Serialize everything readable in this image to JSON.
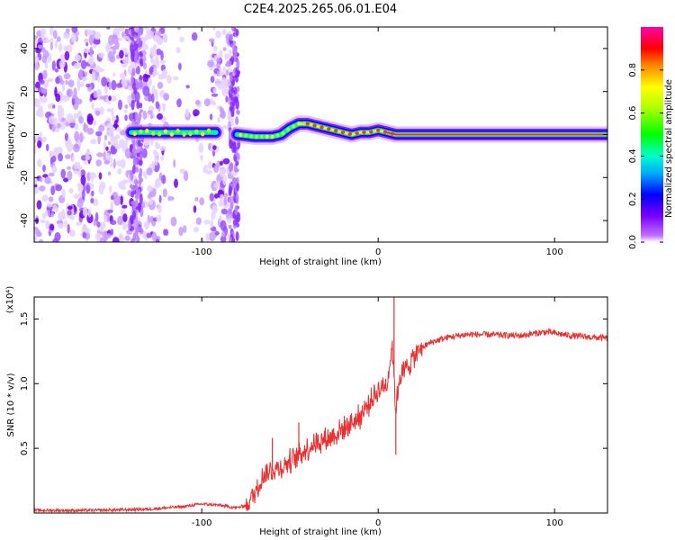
{
  "title": "C2E4.2025.265.06.01.E04",
  "chart_data": [
    {
      "type": "heatmap",
      "description_kind": "spectrogram",
      "xlabel": "Height of straight line (km)",
      "ylabel": "Frequency (Hz)",
      "xlim": [
        -195,
        130
      ],
      "ylim": [
        -50,
        50
      ],
      "xticks": [
        -100,
        0,
        100
      ],
      "yticks": [
        -40,
        -20,
        0,
        20,
        40
      ],
      "xtick_labels": [
        "-100",
        "0",
        "100"
      ],
      "ytick_labels": [
        "-40",
        "-20",
        "0",
        "20",
        "40"
      ],
      "noise_region_x": [
        -195,
        -80
      ],
      "noise_band_x": [
        -135,
        -123
      ],
      "signal_track": {
        "x": [
          -140,
          -120,
          -100,
          -90,
          -80,
          -70,
          -60,
          -55,
          -50,
          -45,
          -40,
          -35,
          -30,
          -25,
          -20,
          -15,
          -10,
          -5,
          0,
          5,
          10,
          20,
          40,
          60,
          80,
          100,
          120,
          130
        ],
        "freq": [
          1,
          1,
          1,
          1,
          0,
          -1,
          -1,
          0,
          3,
          5,
          5,
          4,
          3,
          2,
          1,
          0,
          1,
          1,
          2,
          1,
          0,
          0,
          0,
          0,
          0,
          0,
          0,
          0
        ]
      },
      "colorbar": {
        "label": "Normalized spectral amplitude",
        "range": [
          0,
          1
        ],
        "ticks": [
          0,
          0.2,
          0.4,
          0.6,
          0.8
        ],
        "tick_labels": [
          "0.0",
          "0.2",
          "0.4",
          "0.6",
          "0.8"
        ]
      }
    },
    {
      "type": "line",
      "xlabel": "Height of straight line (km)",
      "ylabel": "SNR (10 * v/v)",
      "scale_label": "(x10⁴)",
      "xlim": [
        -195,
        130
      ],
      "ylim": [
        0,
        1.67
      ],
      "xticks": [
        -100,
        0,
        100
      ],
      "yticks": [
        0.5,
        1.0,
        1.5
      ],
      "xtick_labels": [
        "-100",
        "0",
        "100"
      ],
      "ytick_labels": [
        "0.5",
        "1.0",
        "1.5"
      ],
      "color": "#e83030",
      "series": [
        {
          "name": "SNR",
          "x": [
            -195,
            -160,
            -130,
            -110,
            -100,
            -90,
            -80,
            -75,
            -70,
            -65,
            -60,
            -55,
            -50,
            -45,
            -40,
            -35,
            -30,
            -25,
            -20,
            -15,
            -10,
            -5,
            0,
            5,
            8,
            10,
            12,
            15,
            20,
            25,
            30,
            40,
            50,
            60,
            80,
            95,
            110,
            130
          ],
          "y": [
            0.02,
            0.02,
            0.03,
            0.05,
            0.07,
            0.06,
            0.04,
            0.06,
            0.15,
            0.3,
            0.33,
            0.35,
            0.4,
            0.45,
            0.5,
            0.55,
            0.57,
            0.6,
            0.65,
            0.7,
            0.75,
            0.85,
            0.95,
            1.0,
            1.3,
            0.8,
            1.05,
            1.1,
            1.2,
            1.28,
            1.32,
            1.36,
            1.38,
            1.38,
            1.37,
            1.4,
            1.37,
            1.35
          ]
        }
      ],
      "spikes": [
        {
          "x": 9,
          "y": 1.67
        },
        {
          "x": 10,
          "y": 0.45
        },
        {
          "x": -60,
          "y": 0.58
        },
        {
          "x": -45,
          "y": 0.7
        }
      ]
    }
  ]
}
